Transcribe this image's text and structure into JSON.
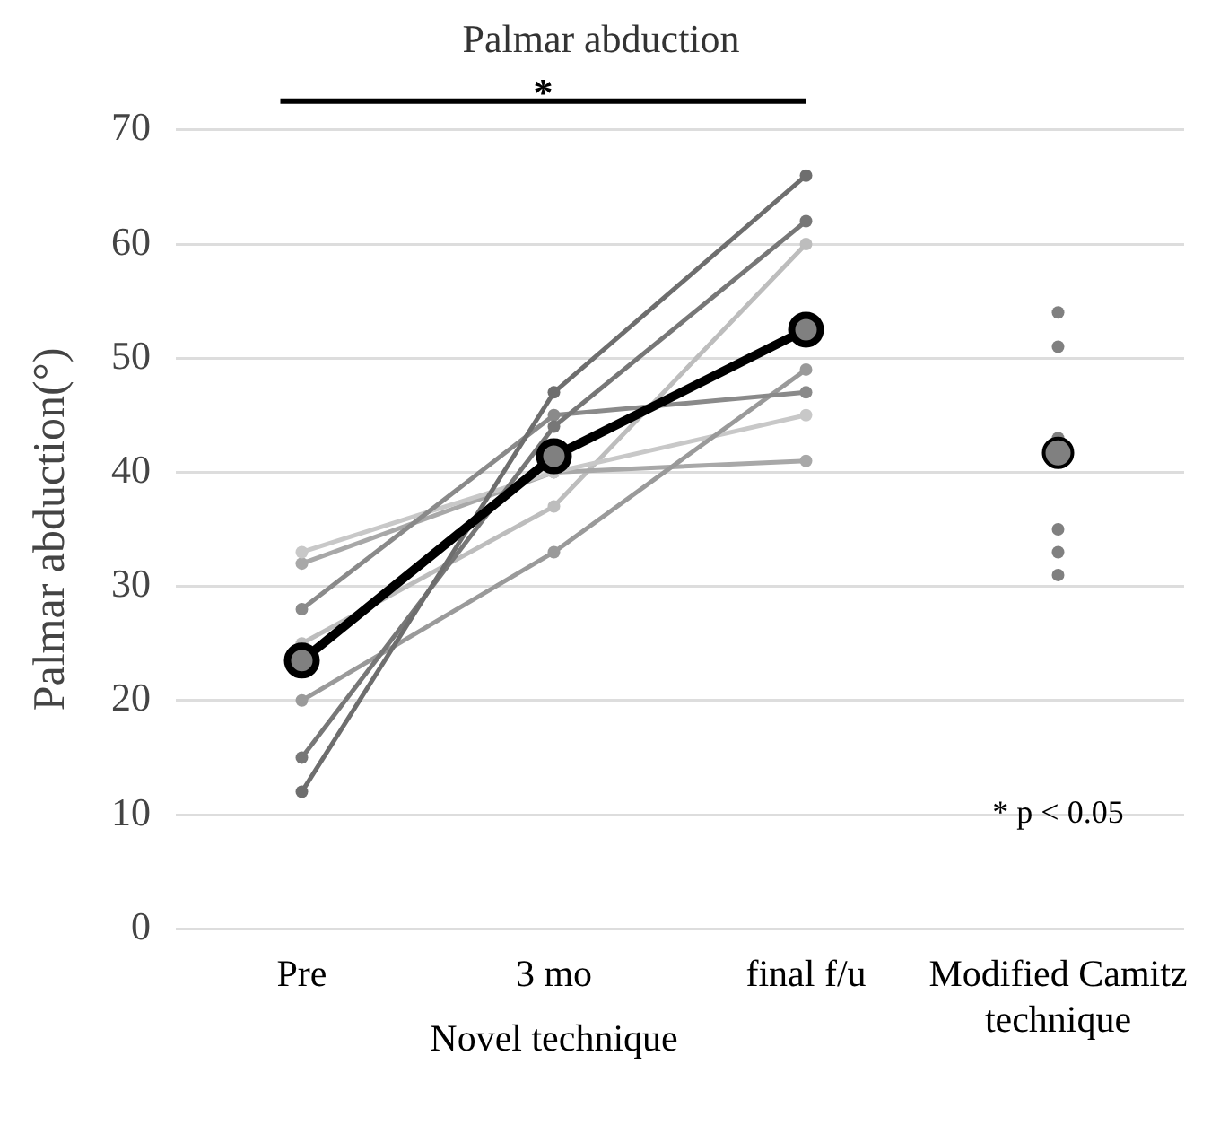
{
  "chart_data": {
    "type": "line",
    "title": "Palmar abduction",
    "ylabel": "Palmar abduction(°)",
    "categories": [
      "Pre",
      "3 mo",
      "final f/u",
      "Modified Camitz technique"
    ],
    "series": [
      {
        "color": "#6e6e6e",
        "values": [
          12,
          47,
          66,
          null
        ]
      },
      {
        "color": "#777777",
        "values": [
          15,
          44,
          62,
          null
        ]
      },
      {
        "color": "#8a8a8a",
        "values": [
          28,
          45,
          47,
          null
        ]
      },
      {
        "color": "#9a9a9a",
        "values": [
          20,
          33,
          49,
          null
        ]
      },
      {
        "color": "#c8c8c8",
        "values": [
          33,
          40,
          45,
          null
        ]
      },
      {
        "color": "#a8a8a8",
        "values": [
          32,
          40,
          41,
          null
        ]
      },
      {
        "color": "#bdbdbd",
        "values": [
          25,
          37,
          60,
          null
        ]
      },
      {
        "color": "#000000",
        "values": [
          23.5,
          41.4,
          52.5,
          null
        ]
      },
      {
        "type": "scatter",
        "color": "#808080",
        "x": [
          "Modified Camitz technique",
          "Modified Camitz technique",
          "Modified Camitz technique",
          "Modified Camitz technique",
          "Modified Camitz technique",
          "Modified Camitz technique"
        ],
        "values": [
          54,
          51,
          43,
          35,
          33,
          31
        ]
      },
      {
        "type": "scatter",
        "color": "#000000",
        "x": [
          "Modified Camitz technique"
        ],
        "values": [
          41.7
        ]
      }
    ],
    "ylim": [
      0,
      70
    ],
    "yticks": [
      0,
      10,
      20,
      30,
      40,
      50,
      60,
      70
    ],
    "grid": "y",
    "legend": false,
    "marker": "circle",
    "line_style": "solid",
    "annotations": [
      "*",
      "Novel technique",
      "* p < 0.05"
    ]
  }
}
